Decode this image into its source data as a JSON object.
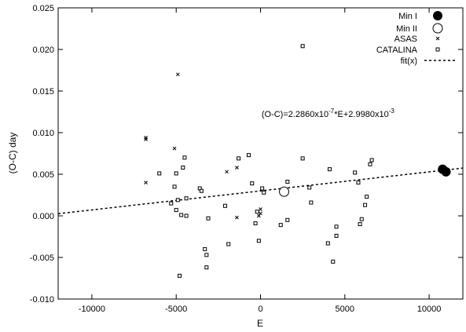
{
  "chart_data": {
    "type": "scatter",
    "xlabel": "E",
    "ylabel": "(O-C) day",
    "xlim": [
      -12000,
      12000
    ],
    "ylim": [
      -0.01,
      0.025
    ],
    "xticks": [
      -10000,
      -5000,
      0,
      5000,
      10000
    ],
    "yticks": [
      -0.01,
      -0.005,
      0,
      0.005,
      0.01,
      0.015,
      0.02,
      0.025
    ],
    "xtick_labels": [
      "-10000",
      "-5000",
      "0",
      "5000",
      "10000"
    ],
    "ytick_labels": [
      "-0.010",
      "-0.005",
      "0.000",
      "0.005",
      "0.010",
      "0.015",
      "0.020",
      "0.025"
    ],
    "grid": false,
    "legend_position": "top-right",
    "annotation": {
      "base": "(O-C)=2.2860x10",
      "exp1": "-7",
      "mid": "*E+2.9980x10",
      "exp2": "-3",
      "x": 4000,
      "y": 0.0119
    },
    "fit": {
      "name": "fit(x)",
      "slope": 2.286e-07,
      "intercept": 0.002998
    },
    "series": [
      {
        "name": "Min I",
        "marker": "filled-circle",
        "points": [
          [
            10800,
            0.0056
          ],
          [
            11000,
            0.0053
          ]
        ]
      },
      {
        "name": "Min II",
        "marker": "open-circle",
        "points": [
          [
            1400,
            0.0029
          ]
        ]
      },
      {
        "name": "ASAS",
        "marker": "cross",
        "points": [
          [
            -6800,
            0.0094
          ],
          [
            -6800,
            0.0092
          ],
          [
            -6800,
            0.004
          ],
          [
            -5100,
            0.0081
          ],
          [
            -4900,
            0.017
          ],
          [
            -2000,
            0.0053
          ],
          [
            -1400,
            0.0058
          ],
          [
            -1400,
            -0.0002
          ],
          [
            -100,
            0.0
          ],
          [
            0,
            0.0008
          ],
          [
            0,
            0.0003
          ]
        ]
      },
      {
        "name": "CATALINA",
        "marker": "open-square",
        "points": [
          [
            -6000,
            0.0051
          ],
          [
            -5300,
            0.0015
          ],
          [
            -5100,
            0.0035
          ],
          [
            -5000,
            0.0007
          ],
          [
            -5000,
            0.0051
          ],
          [
            -4900,
            0.0019
          ],
          [
            -4700,
            0.0001
          ],
          [
            -4600,
            0.0058
          ],
          [
            -4500,
            0.007
          ],
          [
            -4400,
            0.0
          ],
          [
            -4400,
            0.0021
          ],
          [
            -3600,
            0.0033
          ],
          [
            -3500,
            0.003
          ],
          [
            -3300,
            -0.004
          ],
          [
            -3200,
            -0.0047
          ],
          [
            -3200,
            -0.0062
          ],
          [
            -3100,
            -0.0003
          ],
          [
            -4800,
            -0.0072
          ],
          [
            -2100,
            0.0012
          ],
          [
            -1900,
            -0.0034
          ],
          [
            -1300,
            0.0069
          ],
          [
            -700,
            0.0073
          ],
          [
            -500,
            0.0039
          ],
          [
            -300,
            -0.0009
          ],
          [
            -200,
            0.0005
          ],
          [
            -100,
            -0.003
          ],
          [
            100,
            0.0033
          ],
          [
            200,
            0.0028
          ],
          [
            1200,
            -0.0011
          ],
          [
            1600,
            -0.0005
          ],
          [
            1600,
            0.0041
          ],
          [
            2500,
            0.0069
          ],
          [
            2500,
            0.0204
          ],
          [
            2900,
            0.0034
          ],
          [
            3000,
            0.0016
          ],
          [
            4100,
            0.0056
          ],
          [
            4000,
            -0.0033
          ],
          [
            4300,
            -0.0055
          ],
          [
            4500,
            -0.0013
          ],
          [
            4500,
            -0.0024
          ],
          [
            5600,
            0.0052
          ],
          [
            5800,
            0.004
          ],
          [
            6000,
            -0.0004
          ],
          [
            5900,
            -0.001
          ],
          [
            6200,
            0.0013
          ],
          [
            6300,
            0.0023
          ],
          [
            6500,
            0.0062
          ],
          [
            6600,
            0.0067
          ]
        ]
      }
    ]
  }
}
